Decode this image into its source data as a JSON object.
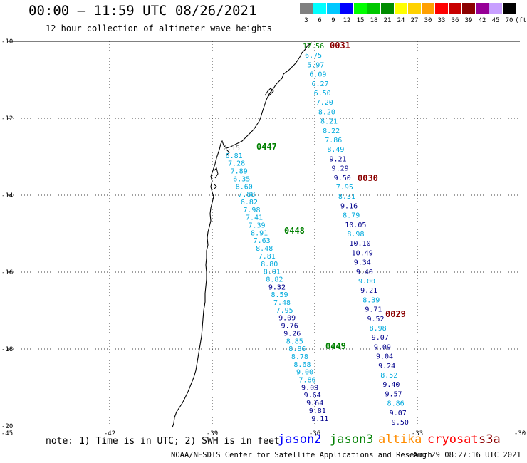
{
  "header": {
    "title": "00:00 – 11:59 UTC 08/26/2021",
    "subtitle": "12 hour collection of altimeter wave heights"
  },
  "color_scale": {
    "unit": "(ft)",
    "swatches": [
      {
        "label": "3",
        "color": "#808080"
      },
      {
        "label": "6",
        "color": "#00ffff"
      },
      {
        "label": "9",
        "color": "#00c8ff"
      },
      {
        "label": "12",
        "color": "#0000ff"
      },
      {
        "label": "15",
        "color": "#00ff00"
      },
      {
        "label": "18",
        "color": "#00c800"
      },
      {
        "label": "21",
        "color": "#008c00"
      },
      {
        "label": "24",
        "color": "#ffff00"
      },
      {
        "label": "27",
        "color": "#ffd200"
      },
      {
        "label": "30",
        "color": "#ffa000"
      },
      {
        "label": "33",
        "color": "#ff0000"
      },
      {
        "label": "36",
        "color": "#c80000"
      },
      {
        "label": "39",
        "color": "#8b0000"
      },
      {
        "label": "42",
        "color": "#960096"
      },
      {
        "label": "45",
        "color": "#c8a0ff"
      },
      {
        "label": "70",
        "color": "#000000"
      }
    ]
  },
  "map": {
    "lat_labels": [
      "-10",
      "-12",
      "-14",
      "-16",
      "-18",
      "-20"
    ],
    "lon_labels": [
      "-45",
      "-42",
      "-39",
      "-36",
      "-33",
      "-30"
    ],
    "track_colors": {
      "light": "#00aadd",
      "dark": "#00008b",
      "green": "#008000",
      "gray": "#888888",
      "time": "#8b0000"
    },
    "passes": [
      {
        "label": "0031",
        "type": "time",
        "color": "time",
        "x": 463,
        "y": 68
      },
      {
        "label": "0447",
        "type": "time",
        "color": "green",
        "x": 360,
        "y": 210
      },
      {
        "label": "0030",
        "type": "time",
        "color": "time",
        "x": 502,
        "y": 254
      },
      {
        "label": "0448",
        "type": "time",
        "color": "green",
        "x": 399,
        "y": 328
      },
      {
        "label": "0029",
        "type": "time",
        "color": "time",
        "x": 541,
        "y": 445
      },
      {
        "label": "0449",
        "type": "time",
        "color": "green",
        "x": 457,
        "y": 490
      }
    ],
    "track_east": [
      {
        "v": "17.56",
        "c": "green"
      },
      {
        "v": "6.75",
        "c": "light"
      },
      {
        "v": "5.97",
        "c": "light"
      },
      {
        "v": "6.09",
        "c": "light"
      },
      {
        "v": "6.27",
        "c": "light"
      },
      {
        "v": "6.50",
        "c": "light"
      },
      {
        "v": "7.20",
        "c": "light"
      },
      {
        "v": "8.20",
        "c": "light"
      },
      {
        "v": "8.21",
        "c": "light"
      },
      {
        "v": "8.22",
        "c": "light"
      },
      {
        "v": "7.86",
        "c": "light"
      },
      {
        "v": "8.49",
        "c": "light"
      },
      {
        "v": "9.21",
        "c": "dark"
      },
      {
        "v": "9.29",
        "c": "dark"
      },
      {
        "v": "9.50",
        "c": "dark"
      },
      {
        "v": "7.95",
        "c": "light"
      },
      {
        "v": "8.31",
        "c": "light"
      },
      {
        "v": "9.16",
        "c": "dark"
      },
      {
        "v": "8.79",
        "c": "light"
      },
      {
        "v": "10.05",
        "c": "dark"
      },
      {
        "v": "8.98",
        "c": "light"
      },
      {
        "v": "10.10",
        "c": "dark"
      },
      {
        "v": "10.49",
        "c": "dark"
      },
      {
        "v": "9.34",
        "c": "dark"
      },
      {
        "v": "9.40",
        "c": "dark"
      },
      {
        "v": "9.00",
        "c": "light"
      },
      {
        "v": "9.21",
        "c": "dark"
      },
      {
        "v": "8.39",
        "c": "light"
      },
      {
        "v": "9.71",
        "c": "dark"
      },
      {
        "v": "9.52",
        "c": "dark"
      },
      {
        "v": "8.98",
        "c": "light"
      },
      {
        "v": "9.07",
        "c": "dark"
      },
      {
        "v": "9.09",
        "c": "dark"
      },
      {
        "v": "9.04",
        "c": "dark"
      },
      {
        "v": "9.24",
        "c": "dark"
      },
      {
        "v": "8.52",
        "c": "light"
      },
      {
        "v": "9.40",
        "c": "dark"
      },
      {
        "v": "9.57",
        "c": "dark"
      },
      {
        "v": "8.86",
        "c": "light"
      },
      {
        "v": "9.07",
        "c": "dark"
      },
      {
        "v": "9.50",
        "c": "dark"
      }
    ],
    "track_west": [
      {
        "v": "2.15",
        "c": "gray"
      },
      {
        "v": "6.81",
        "c": "light"
      },
      {
        "v": "7.28",
        "c": "light"
      },
      {
        "v": "7.89",
        "c": "light"
      },
      {
        "v": "6.35",
        "c": "light"
      },
      {
        "v": "8.60",
        "c": "light"
      },
      {
        "v": "7.88",
        "c": "light"
      },
      {
        "v": "6.82",
        "c": "light"
      },
      {
        "v": "7.98",
        "c": "light"
      },
      {
        "v": "7.41",
        "c": "light"
      },
      {
        "v": "7.39",
        "c": "light"
      },
      {
        "v": "8.91",
        "c": "light"
      },
      {
        "v": "7.63",
        "c": "light"
      },
      {
        "v": "8.48",
        "c": "light"
      },
      {
        "v": "7.81",
        "c": "light"
      },
      {
        "v": "8.80",
        "c": "light"
      },
      {
        "v": "8.91",
        "c": "light"
      },
      {
        "v": "8.82",
        "c": "light"
      },
      {
        "v": "9.32",
        "c": "dark"
      },
      {
        "v": "8.59",
        "c": "light"
      },
      {
        "v": "7.48",
        "c": "light"
      },
      {
        "v": "7.95",
        "c": "light"
      },
      {
        "v": "9.09",
        "c": "dark"
      },
      {
        "v": "9.76",
        "c": "dark"
      },
      {
        "v": "9.26",
        "c": "dark"
      },
      {
        "v": "8.85",
        "c": "light"
      },
      {
        "v": "8.86",
        "c": "light"
      },
      {
        "v": "8.78",
        "c": "light"
      },
      {
        "v": "8.68",
        "c": "light"
      },
      {
        "v": "9.00",
        "c": "light"
      },
      {
        "v": "7.86",
        "c": "light"
      },
      {
        "v": "9.09",
        "c": "dark"
      },
      {
        "v": "9.64",
        "c": "dark"
      },
      {
        "v": "9.64",
        "c": "dark"
      },
      {
        "v": "9.81",
        "c": "dark"
      },
      {
        "v": "9.11",
        "c": "dark"
      }
    ]
  },
  "legend": {
    "note": "note: 1) Time is in UTC; 2) SWH is in feet",
    "satellites": [
      {
        "name": "jason2",
        "color": "#0000ff"
      },
      {
        "name": "jason3",
        "color": "#008000"
      },
      {
        "name": "altika",
        "color": "#ff8c00"
      },
      {
        "name": "cryosat",
        "color": "#ff0000"
      },
      {
        "name": "s3a",
        "color": "#8b0000"
      }
    ]
  },
  "footer": {
    "credit": "NOAA/NESDIS Center for Satellite Applications and Research",
    "timestamp": "Aug 29 08:27:16 UTC 2021"
  }
}
